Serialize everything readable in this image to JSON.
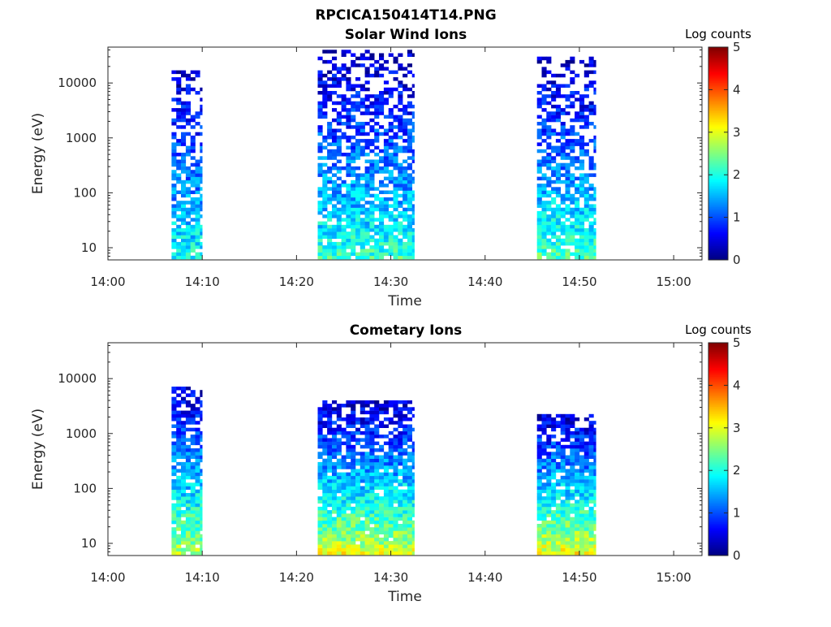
{
  "figure": {
    "title": "RPCICA150414T14.PNG"
  },
  "chart_data": [
    {
      "type": "heatmap",
      "title": "Solar Wind Ions",
      "xlabel": "Time",
      "ylabel": "Energy (eV)",
      "yscale": "log",
      "xlim": [
        "14:00",
        "15:03"
      ],
      "ylim": [
        6,
        45000
      ],
      "xticks": [
        "14:00",
        "14:10",
        "14:20",
        "14:30",
        "14:40",
        "14:50",
        "15:00"
      ],
      "yticks": [
        "10",
        "100",
        "1000",
        "10000"
      ],
      "colorbar": {
        "label": "Log counts",
        "ticks": [
          "0",
          "1",
          "2",
          "3",
          "4",
          "5"
        ],
        "range": [
          0,
          5
        ],
        "colormap": "jet"
      },
      "grid": false,
      "bursts": [
        {
          "start": "14:06:45",
          "end": "14:10:00",
          "max_energy_eV": 18000,
          "low_energy_log_counts": 2.0,
          "high_energy_log_counts": 0.4
        },
        {
          "start": "14:22:15",
          "end": "14:32:30",
          "max_energy_eV": 40000,
          "low_energy_log_counts": 2.2,
          "high_energy_log_counts": 0.3
        },
        {
          "start": "14:45:30",
          "end": "14:51:45",
          "max_energy_eV": 30000,
          "low_energy_log_counts": 2.3,
          "high_energy_log_counts": 0.3
        }
      ]
    },
    {
      "type": "heatmap",
      "title": "Cometary Ions",
      "xlabel": "Time",
      "ylabel": "Energy (eV)",
      "yscale": "log",
      "xlim": [
        "14:00",
        "15:03"
      ],
      "ylim": [
        6,
        45000
      ],
      "xticks": [
        "14:00",
        "14:10",
        "14:20",
        "14:30",
        "14:40",
        "14:50",
        "15:00"
      ],
      "yticks": [
        "10",
        "100",
        "1000",
        "10000"
      ],
      "colorbar": {
        "label": "Log counts",
        "ticks": [
          "0",
          "1",
          "2",
          "3",
          "4",
          "5"
        ],
        "range": [
          0,
          5
        ],
        "colormap": "jet"
      },
      "grid": false,
      "bursts": [
        {
          "start": "14:06:45",
          "end": "14:10:00",
          "max_energy_eV": 7000,
          "low_energy_log_counts": 2.8,
          "high_energy_log_counts": 0.4
        },
        {
          "start": "14:22:15",
          "end": "14:32:30",
          "max_energy_eV": 3500,
          "low_energy_log_counts": 3.0,
          "high_energy_log_counts": 0.4
        },
        {
          "start": "14:45:30",
          "end": "14:51:45",
          "max_energy_eV": 2100,
          "low_energy_log_counts": 3.1,
          "high_energy_log_counts": 0.4
        }
      ]
    }
  ]
}
